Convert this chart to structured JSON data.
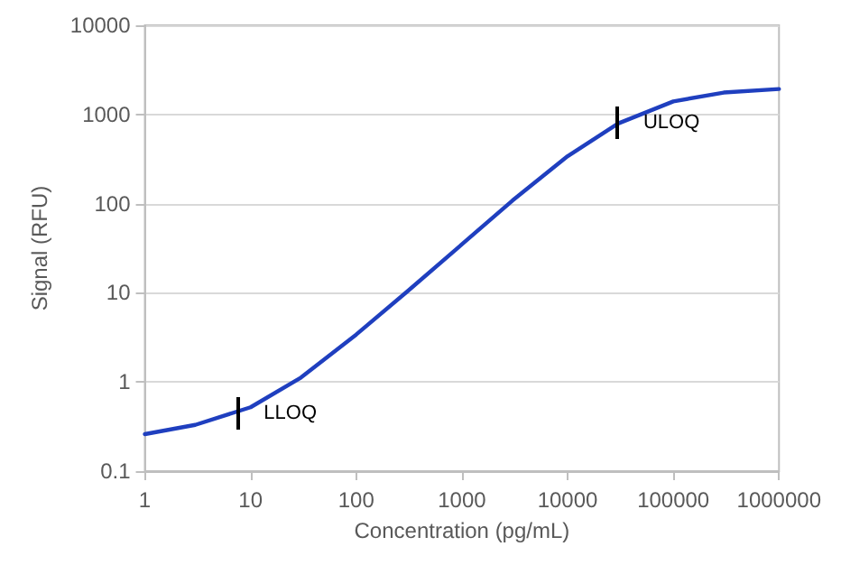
{
  "chart_data": {
    "type": "line",
    "xlabel": "Concentration (pg/mL)",
    "ylabel": "Signal (RFU)",
    "log": "xy",
    "x": [
      1,
      3,
      10,
      30,
      100,
      300,
      1000,
      3000,
      10000,
      30000,
      100000,
      300000,
      1000000
    ],
    "series": [
      {
        "color": "#1f3fbf",
        "values": [
          0.26,
          0.33,
          0.52,
          1.12,
          3.4,
          10.2,
          35,
          108,
          340,
          790,
          1400,
          1760,
          1930
        ]
      }
    ],
    "xlim": [
      1,
      1000000
    ],
    "xticks": [
      1,
      10,
      100,
      1000,
      10000,
      100000,
      1000000
    ],
    "ylim": [
      0.1,
      10000
    ],
    "yticks": [
      0.1,
      1,
      10,
      100,
      1000,
      10000
    ],
    "grid": "y",
    "marker": "none",
    "line_style": "solid",
    "annotations": [
      {
        "text": "LLOQ",
        "x": 7.7,
        "y": 0.44
      },
      {
        "text": "ULOQ",
        "x": 30000,
        "y": 790
      }
    ]
  }
}
